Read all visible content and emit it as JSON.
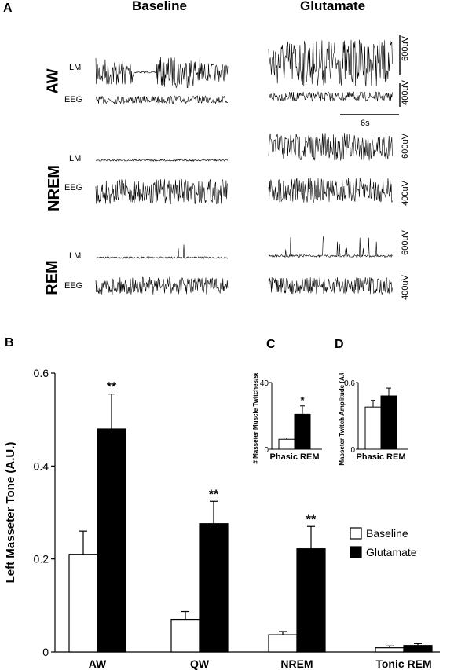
{
  "panel_a": {
    "letter": "A",
    "columns": [
      "Baseline",
      "Glutamate"
    ],
    "states": [
      {
        "state": "AW",
        "traces": [
          "LM",
          "EEG"
        ],
        "scales": [
          "600uV",
          "400uV"
        ]
      },
      {
        "state": "NREM",
        "traces": [
          "LM",
          "EEG"
        ],
        "scales": [
          "600uV",
          "400uV"
        ]
      },
      {
        "state": "REM",
        "traces": [
          "LM",
          "EEG"
        ],
        "scales": [
          "600uV",
          "400uV"
        ]
      }
    ],
    "time_scale": "6s"
  },
  "chart_data": [
    {
      "panel": "B",
      "type": "bar",
      "ylabel": "Left Masseter Tone (A.U.)",
      "ylim": [
        0,
        0.6
      ],
      "yticks": [
        "0",
        "0.2",
        "0.4",
        "0.6"
      ],
      "categories": [
        "AW",
        "QW",
        "NREM",
        "Tonic REM"
      ],
      "series": [
        {
          "name": "Baseline",
          "color": "#ffffff",
          "values": [
            0.21,
            0.07,
            0.037,
            0.009
          ],
          "errors": [
            0.05,
            0.017,
            0.007,
            0.004
          ]
        },
        {
          "name": "Glutamate",
          "color": "#000000",
          "values": [
            0.48,
            0.276,
            0.222,
            0.014
          ],
          "errors": [
            0.075,
            0.048,
            0.048,
            0.004
          ]
        }
      ],
      "significance": [
        "**",
        "**",
        "**",
        ""
      ],
      "legend_position": "right"
    },
    {
      "panel": "C",
      "type": "bar",
      "ylabel": "# Masseter Muscle Twitches/sec",
      "ylim": [
        0,
        40
      ],
      "yticks": [
        "0",
        "40"
      ],
      "categories": [
        "Phasic REM"
      ],
      "series": [
        {
          "name": "Baseline",
          "color": "#ffffff",
          "values": [
            6
          ],
          "errors": [
            0.8
          ]
        },
        {
          "name": "Glutamate",
          "color": "#000000",
          "values": [
            21
          ],
          "errors": [
            5
          ]
        }
      ],
      "significance": [
        "*"
      ]
    },
    {
      "panel": "D",
      "type": "bar",
      "ylabel": "Masseter Twitch Amplitude (A.U.)",
      "ylim": [
        0,
        0.6
      ],
      "yticks": [
        "0",
        "0.6"
      ],
      "categories": [
        "Phasic REM"
      ],
      "series": [
        {
          "name": "Baseline",
          "color": "#ffffff",
          "values": [
            0.38
          ],
          "errors": [
            0.06
          ]
        },
        {
          "name": "Glutamate",
          "color": "#000000",
          "values": [
            0.48
          ],
          "errors": [
            0.07
          ]
        }
      ],
      "significance": [
        ""
      ]
    }
  ]
}
